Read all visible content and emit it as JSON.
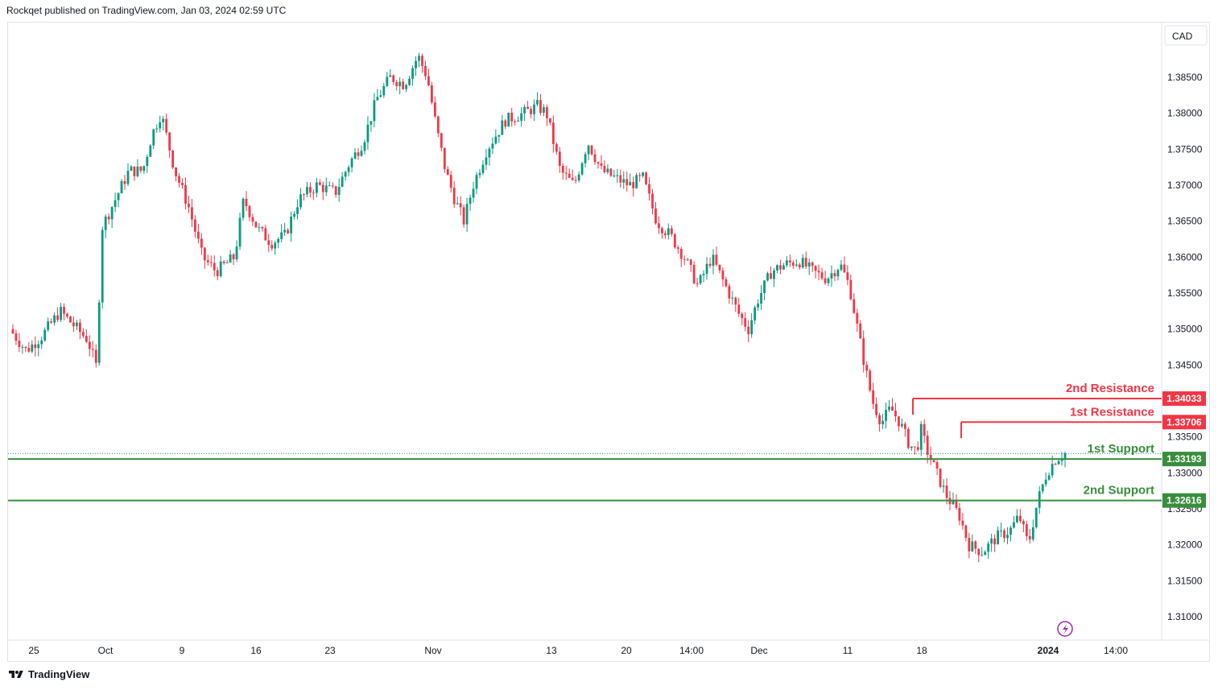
{
  "header": {
    "attribution": "Rockqet published on TradingView.com, Jan 03, 2024 02:59 UTC"
  },
  "footer": {
    "brand": "TradingView"
  },
  "chart_data": {
    "type": "candlestick",
    "currency": "CAD",
    "y_ticks": [
      "1.38500",
      "1.38000",
      "1.37500",
      "1.37000",
      "1.36500",
      "1.36000",
      "1.35500",
      "1.35000",
      "1.34500",
      "1.33500",
      "1.33000",
      "1.32500",
      "1.32000",
      "1.31500",
      "1.31000"
    ],
    "x_ticks": [
      "25",
      "Oct",
      "9",
      "16",
      "23",
      "Nov",
      "13",
      "20",
      "14:00",
      "Dec",
      "11",
      "18",
      "2024",
      "14:00"
    ],
    "current_price": 1.3327,
    "levels": [
      {
        "label": "2nd Resistance",
        "price": 1.34033,
        "price_label": "1.34033",
        "color": "#f23645"
      },
      {
        "label": "1st Resistance",
        "price": 1.33706,
        "price_label": "1.33706",
        "color": "#f23645"
      },
      {
        "label": "1st Support",
        "price": 1.33193,
        "price_label": "1.33193",
        "color": "#388e3c"
      },
      {
        "label": "2nd Support",
        "price": 1.32616,
        "price_label": "1.32616",
        "color": "#388e3c"
      }
    ],
    "close_path": [
      [
        0,
        1.35
      ],
      [
        0.018,
        1.347
      ],
      [
        0.035,
        1.349
      ],
      [
        0.055,
        1.3525
      ],
      [
        0.07,
        1.3505
      ],
      [
        0.085,
        1.3485
      ],
      [
        0.095,
        1.3445
      ],
      [
        0.1,
        1.364
      ],
      [
        0.115,
        1.368
      ],
      [
        0.13,
        1.372
      ],
      [
        0.145,
        1.372
      ],
      [
        0.155,
        1.377
      ],
      [
        0.165,
        1.38
      ],
      [
        0.18,
        1.372
      ],
      [
        0.195,
        1.367
      ],
      [
        0.21,
        1.36
      ],
      [
        0.225,
        1.358
      ],
      [
        0.245,
        1.36
      ],
      [
        0.255,
        1.368
      ],
      [
        0.27,
        1.364
      ],
      [
        0.285,
        1.362
      ],
      [
        0.3,
        1.363
      ],
      [
        0.315,
        1.368
      ],
      [
        0.335,
        1.37
      ],
      [
        0.355,
        1.369
      ],
      [
        0.37,
        1.373
      ],
      [
        0.385,
        1.376
      ],
      [
        0.4,
        1.382
      ],
      [
        0.415,
        1.385
      ],
      [
        0.43,
        1.384
      ],
      [
        0.445,
        1.388
      ],
      [
        0.455,
        1.385
      ],
      [
        0.465,
        1.378
      ],
      [
        0.475,
        1.372
      ],
      [
        0.485,
        1.368
      ],
      [
        0.495,
        1.365
      ],
      [
        0.505,
        1.37
      ],
      [
        0.52,
        1.375
      ],
      [
        0.54,
        1.379
      ],
      [
        0.56,
        1.38
      ],
      [
        0.575,
        1.381
      ],
      [
        0.585,
        1.38
      ],
      [
        0.6,
        1.372
      ],
      [
        0.615,
        1.37
      ],
      [
        0.63,
        1.376
      ],
      [
        0.645,
        1.372
      ],
      [
        0.66,
        1.371
      ],
      [
        0.675,
        1.37
      ],
      [
        0.69,
        1.371
      ],
      [
        0.705,
        1.365
      ],
      [
        0.72,
        1.363
      ],
      [
        0.735,
        1.36
      ],
      [
        0.75,
        1.356
      ],
      [
        0.765,
        1.36
      ],
      [
        0.78,
        1.356
      ],
      [
        0.795,
        1.352
      ],
      [
        0.805,
        1.35
      ],
      [
        0.815,
        1.354
      ],
      [
        0.83,
        1.358
      ],
      [
        0.845,
        1.359
      ],
      [
        0.86,
        1.3595
      ],
      [
        0.875,
        1.358
      ],
      [
        0.89,
        1.357
      ],
      [
        0.905,
        1.359
      ],
      [
        0.915,
        1.356
      ],
      [
        0.93,
        1.346
      ],
      [
        0.94,
        1.34
      ],
      [
        0.95,
        1.337
      ],
      [
        0.96,
        1.339
      ],
      [
        0.97,
        1.337
      ],
      [
        0.98,
        1.334
      ],
      [
        0.988,
        1.333
      ],
      [
        0.993,
        1.336
      ],
      [
        1.0,
        1.333
      ],
      [
        1.01,
        1.33
      ],
      [
        1.02,
        1.327
      ],
      [
        1.035,
        1.324
      ],
      [
        1.045,
        1.32
      ],
      [
        1.06,
        1.319
      ],
      [
        1.075,
        1.321
      ],
      [
        1.09,
        1.322
      ],
      [
        1.1,
        1.324
      ],
      [
        1.11,
        1.32
      ],
      [
        1.12,
        1.326
      ],
      [
        1.13,
        1.33
      ],
      [
        1.14,
        1.332
      ],
      [
        1.15,
        1.3327
      ]
    ]
  }
}
